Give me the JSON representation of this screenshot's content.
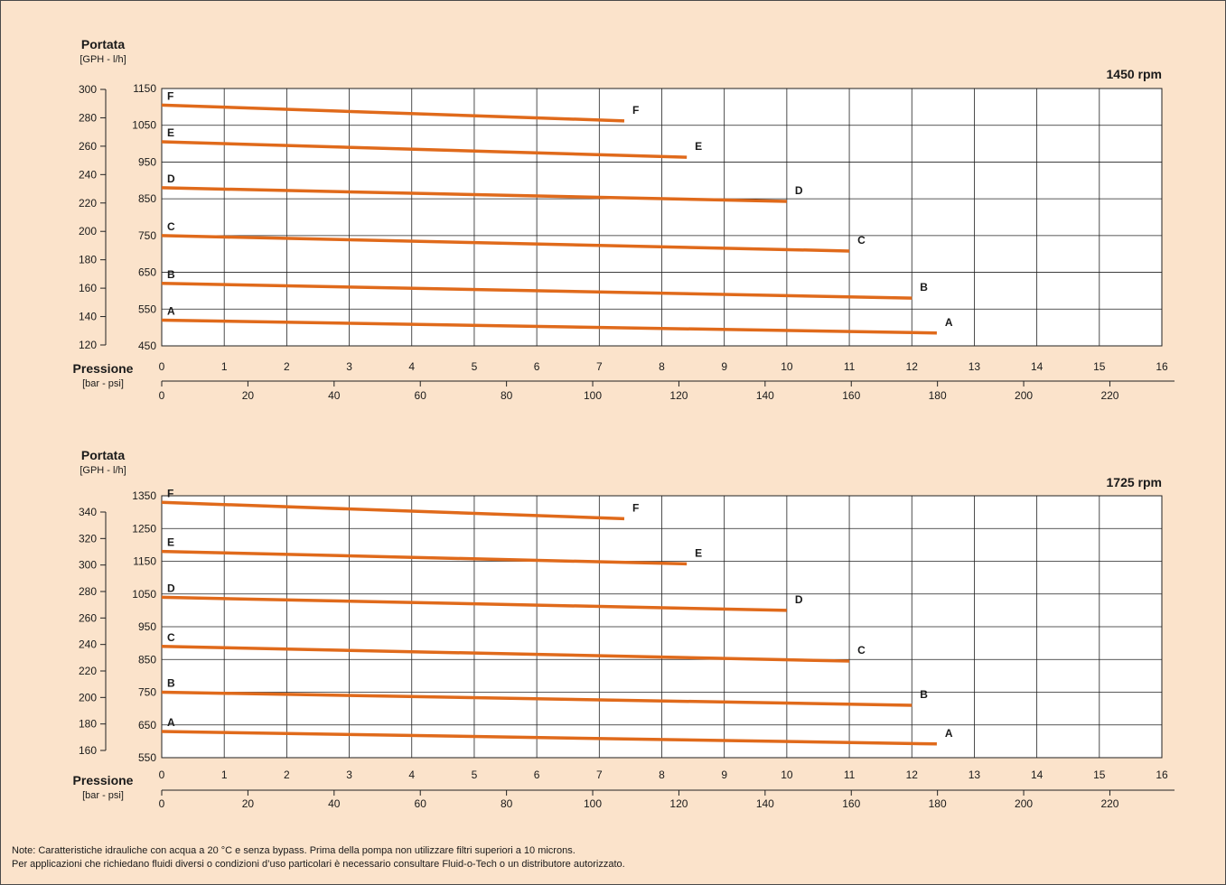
{
  "notes": [
    "Note: Caratteristiche idrauliche con acqua a 20 °C e senza bypass. Prima della pompa non utilizzare filtri superiori a 10 microns.",
    "Per applicazioni che richiedano fluidi diversi o condizioni d’uso particolari è necessario consultare Fluid-o-Tech o un distributore autorizzato."
  ],
  "colors": {
    "line": "#e06a1b",
    "background": "#fbe3cb",
    "grid": "#222222"
  },
  "chart_data": [
    {
      "type": "line",
      "title": "1450 rpm",
      "ylabel": "Portata",
      "ylabel_unit": "[GPH - l/h]",
      "xlabel": "Pressione",
      "xlabel_unit": "[bar - psi]",
      "x_bar_ticks": [
        "0",
        "1",
        "2",
        "3",
        "4",
        "5",
        "6",
        "7",
        "8",
        "9",
        "10",
        "11",
        "12",
        "13",
        "14",
        "15",
        "16"
      ],
      "x_psi_ticks": [
        "0",
        "20",
        "40",
        "60",
        "80",
        "100",
        "120",
        "140",
        "160",
        "180",
        "200",
        "220"
      ],
      "y_lh_ticks": [
        "450",
        "550",
        "650",
        "750",
        "850",
        "950",
        "1050",
        "1150"
      ],
      "y_gph_ticks": [
        "120",
        "140",
        "160",
        "180",
        "200",
        "220",
        "240",
        "260",
        "280",
        "300"
      ],
      "xlim": [
        0,
        16
      ],
      "ylim": [
        450,
        1150
      ],
      "grid": true,
      "series": [
        {
          "name": "A",
          "x": [
            0,
            12.4
          ],
          "y": [
            520,
            485
          ]
        },
        {
          "name": "B",
          "x": [
            0,
            12.0
          ],
          "y": [
            620,
            580
          ]
        },
        {
          "name": "C",
          "x": [
            0,
            11.0
          ],
          "y": [
            750,
            708
          ]
        },
        {
          "name": "D",
          "x": [
            0,
            10.0
          ],
          "y": [
            880,
            843
          ]
        },
        {
          "name": "E",
          "x": [
            0,
            8.4
          ],
          "y": [
            1005,
            963
          ]
        },
        {
          "name": "F",
          "x": [
            0,
            7.4
          ],
          "y": [
            1105,
            1062
          ]
        }
      ]
    },
    {
      "type": "line",
      "title": "1725 rpm",
      "ylabel": "Portata",
      "ylabel_unit": "[GPH - l/h]",
      "xlabel": "Pressione",
      "xlabel_unit": "[bar - psi]",
      "x_bar_ticks": [
        "0",
        "1",
        "2",
        "3",
        "4",
        "5",
        "6",
        "7",
        "8",
        "9",
        "10",
        "11",
        "12",
        "13",
        "14",
        "15",
        "16"
      ],
      "x_psi_ticks": [
        "0",
        "20",
        "40",
        "60",
        "80",
        "100",
        "120",
        "140",
        "160",
        "180",
        "200",
        "220"
      ],
      "y_lh_ticks": [
        "550",
        "650",
        "750",
        "850",
        "950",
        "1050",
        "1150",
        "1250",
        "1350"
      ],
      "y_gph_ticks": [
        "160",
        "180",
        "200",
        "220",
        "240",
        "260",
        "280",
        "300",
        "320",
        "340"
      ],
      "xlim": [
        0,
        16
      ],
      "ylim": [
        550,
        1350
      ],
      "grid": true,
      "series": [
        {
          "name": "A",
          "x": [
            0,
            12.4
          ],
          "y": [
            630,
            592
          ]
        },
        {
          "name": "B",
          "x": [
            0,
            12.0
          ],
          "y": [
            750,
            710
          ]
        },
        {
          "name": "C",
          "x": [
            0,
            11.0
          ],
          "y": [
            890,
            845
          ]
        },
        {
          "name": "D",
          "x": [
            0,
            10.0
          ],
          "y": [
            1040,
            1000
          ]
        },
        {
          "name": "E",
          "x": [
            0,
            8.4
          ],
          "y": [
            1180,
            1142
          ]
        },
        {
          "name": "F",
          "x": [
            0,
            7.4
          ],
          "y": [
            1330,
            1280
          ]
        }
      ]
    }
  ]
}
